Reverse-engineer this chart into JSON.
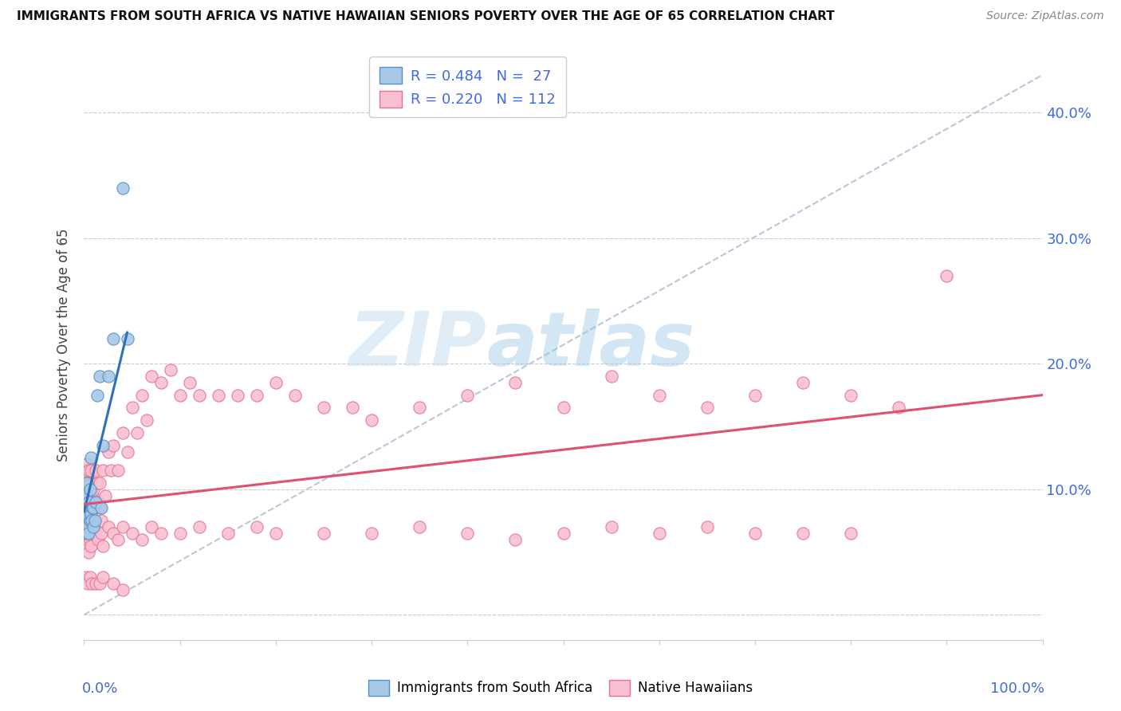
{
  "title": "IMMIGRANTS FROM SOUTH AFRICA VS NATIVE HAWAIIAN SENIORS POVERTY OVER THE AGE OF 65 CORRELATION CHART",
  "source": "Source: ZipAtlas.com",
  "ylabel": "Seniors Poverty Over the Age of 65",
  "ytick_labels": [
    "",
    "10.0%",
    "20.0%",
    "30.0%",
    "40.0%"
  ],
  "ytick_values": [
    0.0,
    0.1,
    0.2,
    0.3,
    0.4
  ],
  "legend_label_1": "Immigrants from South Africa",
  "legend_label_2": "Native Hawaiians",
  "watermark_zip": "ZIP",
  "watermark_atlas": "atlas",
  "color_blue_fill": "#a8c8e8",
  "color_blue_edge": "#5590c8",
  "color_pink_fill": "#f8c0d0",
  "color_pink_edge": "#e87090",
  "color_axis_blue": "#4169E1",
  "xlim": [
    0.0,
    1.0
  ],
  "ylim": [
    -0.02,
    0.45
  ],
  "blue_scatter_x": [
    0.001,
    0.002,
    0.002,
    0.003,
    0.003,
    0.004,
    0.004,
    0.005,
    0.005,
    0.006,
    0.006,
    0.007,
    0.007,
    0.008,
    0.009,
    0.01,
    0.01,
    0.011,
    0.012,
    0.014,
    0.016,
    0.018,
    0.02,
    0.025,
    0.03,
    0.04,
    0.045
  ],
  "blue_scatter_y": [
    0.085,
    0.095,
    0.075,
    0.105,
    0.065,
    0.08,
    0.07,
    0.09,
    0.065,
    0.1,
    0.075,
    0.125,
    0.08,
    0.075,
    0.085,
    0.07,
    0.085,
    0.075,
    0.09,
    0.175,
    0.19,
    0.085,
    0.135,
    0.19,
    0.22,
    0.34,
    0.22
  ],
  "pink_scatter_x": [
    0.001,
    0.001,
    0.001,
    0.002,
    0.002,
    0.002,
    0.003,
    0.003,
    0.003,
    0.004,
    0.004,
    0.005,
    0.005,
    0.005,
    0.006,
    0.006,
    0.007,
    0.007,
    0.008,
    0.008,
    0.009,
    0.01,
    0.01,
    0.011,
    0.012,
    0.013,
    0.014,
    0.015,
    0.016,
    0.017,
    0.018,
    0.02,
    0.022,
    0.025,
    0.028,
    0.03,
    0.035,
    0.04,
    0.045,
    0.05,
    0.055,
    0.06,
    0.065,
    0.07,
    0.08,
    0.09,
    0.1,
    0.11,
    0.12,
    0.14,
    0.16,
    0.18,
    0.2,
    0.22,
    0.25,
    0.28,
    0.3,
    0.35,
    0.4,
    0.45,
    0.5,
    0.55,
    0.6,
    0.65,
    0.7,
    0.75,
    0.8,
    0.85,
    0.9,
    0.002,
    0.003,
    0.004,
    0.005,
    0.006,
    0.007,
    0.008,
    0.01,
    0.012,
    0.015,
    0.018,
    0.02,
    0.025,
    0.03,
    0.035,
    0.04,
    0.05,
    0.06,
    0.07,
    0.08,
    0.1,
    0.12,
    0.15,
    0.18,
    0.2,
    0.25,
    0.3,
    0.35,
    0.4,
    0.45,
    0.5,
    0.55,
    0.6,
    0.65,
    0.7,
    0.75,
    0.8,
    0.002,
    0.004,
    0.006,
    0.008,
    0.012,
    0.016,
    0.02,
    0.03,
    0.04
  ],
  "pink_scatter_y": [
    0.1,
    0.115,
    0.085,
    0.105,
    0.085,
    0.075,
    0.12,
    0.095,
    0.075,
    0.105,
    0.085,
    0.115,
    0.095,
    0.075,
    0.105,
    0.085,
    0.115,
    0.095,
    0.105,
    0.085,
    0.095,
    0.1,
    0.075,
    0.09,
    0.115,
    0.09,
    0.105,
    0.09,
    0.105,
    0.085,
    0.075,
    0.115,
    0.095,
    0.13,
    0.115,
    0.135,
    0.115,
    0.145,
    0.13,
    0.165,
    0.145,
    0.175,
    0.155,
    0.19,
    0.185,
    0.195,
    0.175,
    0.185,
    0.175,
    0.175,
    0.175,
    0.175,
    0.185,
    0.175,
    0.165,
    0.165,
    0.155,
    0.165,
    0.175,
    0.185,
    0.165,
    0.19,
    0.175,
    0.165,
    0.175,
    0.185,
    0.175,
    0.165,
    0.27,
    0.065,
    0.055,
    0.06,
    0.05,
    0.06,
    0.055,
    0.065,
    0.07,
    0.065,
    0.06,
    0.065,
    0.055,
    0.07,
    0.065,
    0.06,
    0.07,
    0.065,
    0.06,
    0.07,
    0.065,
    0.065,
    0.07,
    0.065,
    0.07,
    0.065,
    0.065,
    0.065,
    0.07,
    0.065,
    0.06,
    0.065,
    0.07,
    0.065,
    0.07,
    0.065,
    0.065,
    0.065,
    0.03,
    0.025,
    0.03,
    0.025,
    0.025,
    0.025,
    0.03,
    0.025,
    0.02
  ],
  "blue_trend_x": [
    0.0,
    0.045
  ],
  "blue_trend_y": [
    0.082,
    0.225
  ],
  "pink_trend_x": [
    0.0,
    1.0
  ],
  "pink_trend_y": [
    0.088,
    0.175
  ],
  "gray_trend_x": [
    0.0,
    1.0
  ],
  "gray_trend_y": [
    0.0,
    0.43
  ]
}
